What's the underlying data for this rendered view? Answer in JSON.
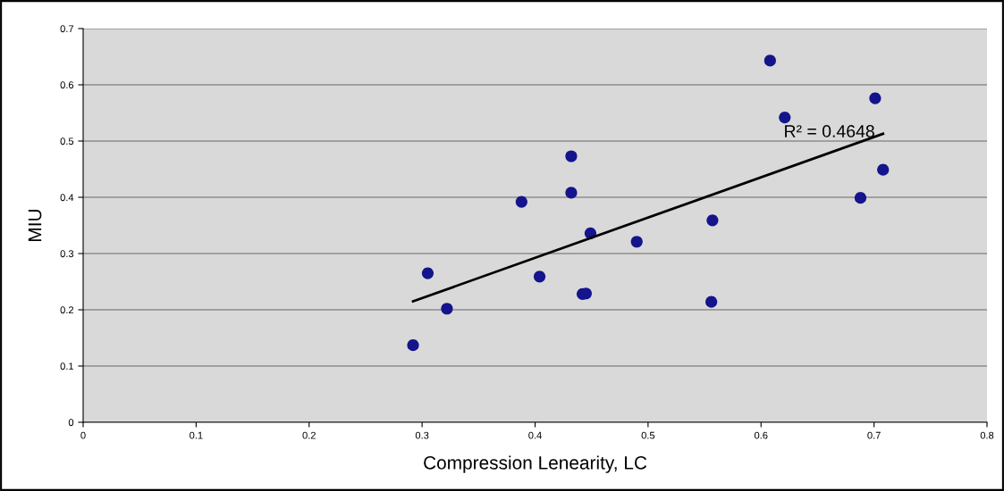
{
  "chart_data": {
    "type": "scatter",
    "xlabel": "Compression Lenearity, LC",
    "ylabel": "MIU",
    "series": [
      {
        "color": "#14148c",
        "marker": "circle",
        "x": [
          0.292,
          0.305,
          0.322,
          0.388,
          0.404,
          0.432,
          0.432,
          0.442,
          0.445,
          0.449,
          0.49,
          0.556,
          0.557,
          0.608,
          0.621,
          0.688,
          0.701,
          0.708
        ],
        "values": [
          0.137,
          0.265,
          0.202,
          0.392,
          0.259,
          0.473,
          0.408,
          0.228,
          0.229,
          0.336,
          0.321,
          0.214,
          0.359,
          0.643,
          0.542,
          0.399,
          0.576,
          0.449
        ]
      },
      {
        "type": "line",
        "color": "#000000",
        "marker": "none",
        "line_style": "solid",
        "x": [
          0.292,
          0.708
        ],
        "values": [
          0.215,
          0.513
        ]
      }
    ],
    "annotations": [
      "R² = 0.4648"
    ],
    "xlim": [
      0,
      0.8
    ],
    "xticks": [
      0,
      0.1,
      0.2,
      0.3,
      0.4,
      0.5,
      0.6,
      0.7,
      0.8
    ],
    "ylim": [
      0,
      0.7
    ],
    "yticks": [
      0,
      0.1,
      0.2,
      0.3,
      0.4,
      0.5,
      0.6,
      0.7
    ],
    "grid": "y",
    "legend": false
  }
}
